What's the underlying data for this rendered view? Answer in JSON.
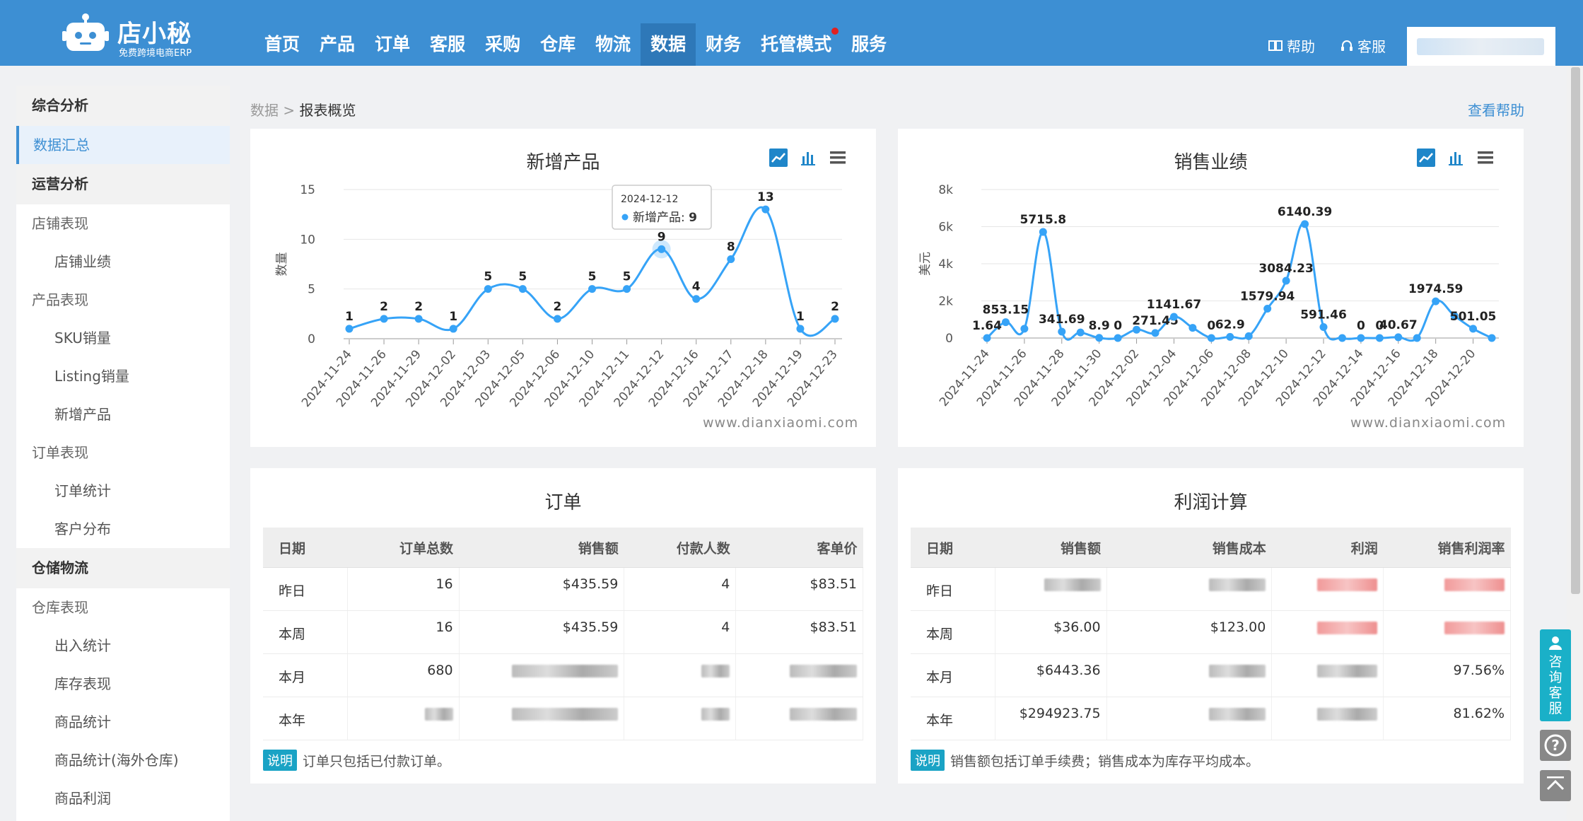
{
  "brand": {
    "name": "店小秘",
    "tagline": "免费跨境电商ERP"
  },
  "nav": [
    {
      "label": "首页"
    },
    {
      "label": "产品"
    },
    {
      "label": "订单"
    },
    {
      "label": "客服"
    },
    {
      "label": "采购"
    },
    {
      "label": "仓库"
    },
    {
      "label": "物流"
    },
    {
      "label": "数据",
      "active": true
    },
    {
      "label": "财务"
    },
    {
      "label": "托管模式",
      "dot": true
    },
    {
      "label": "服务"
    }
  ],
  "header": {
    "help": "帮助",
    "service": "客服"
  },
  "sidebar": [
    {
      "type": "group",
      "label": "综合分析"
    },
    {
      "type": "item",
      "label": "数据汇总",
      "active": true
    },
    {
      "type": "group",
      "label": "运营分析"
    },
    {
      "type": "item",
      "label": "店铺表现"
    },
    {
      "type": "sub",
      "label": "店铺业绩"
    },
    {
      "type": "item",
      "label": "产品表现"
    },
    {
      "type": "sub",
      "label": "SKU销量"
    },
    {
      "type": "sub",
      "label": "Listing销量"
    },
    {
      "type": "sub",
      "label": "新增产品"
    },
    {
      "type": "item",
      "label": "订单表现"
    },
    {
      "type": "sub",
      "label": "订单统计"
    },
    {
      "type": "sub",
      "label": "客户分布"
    },
    {
      "type": "group",
      "label": "仓储物流"
    },
    {
      "type": "item",
      "label": "仓库表现"
    },
    {
      "type": "sub",
      "label": "出入统计"
    },
    {
      "type": "sub",
      "label": "库存表现"
    },
    {
      "type": "sub",
      "label": "商品统计"
    },
    {
      "type": "sub",
      "label": "商品统计(海外仓库)"
    },
    {
      "type": "sub",
      "label": "商品利润"
    }
  ],
  "breadcrumb": {
    "root": "数据",
    "sep": ">",
    "current": "报表概览"
  },
  "help_link": "查看帮助",
  "watermark": "www.dianxiaomi.com",
  "chart_data": [
    {
      "type": "line",
      "title": "新增产品",
      "ylabel": "数量",
      "ylim": [
        0,
        15
      ],
      "yticks": [
        "0",
        "5",
        "10",
        "15"
      ],
      "x": [
        "2024-11-24",
        "2024-11-26",
        "2024-11-29",
        "2024-12-02",
        "2024-12-03",
        "2024-12-05",
        "2024-12-06",
        "2024-12-10",
        "2024-12-11",
        "2024-12-12",
        "2024-12-16",
        "2024-12-17",
        "2024-12-18",
        "2024-12-19",
        "2024-12-23"
      ],
      "series": [
        {
          "name": "新增产品",
          "values": [
            1,
            2,
            2,
            1,
            5,
            5,
            2,
            5,
            5,
            9,
            4,
            8,
            13,
            1,
            2
          ]
        }
      ],
      "labels": [
        "1",
        "2",
        "2",
        "1",
        "5",
        "5",
        "2",
        "5",
        "5",
        "9",
        "4",
        "8",
        "13",
        "1",
        "2"
      ],
      "tooltip": {
        "date": "2024-12-12",
        "label": "新增产品",
        "value": "9"
      }
    },
    {
      "type": "line",
      "title": "销售业绩",
      "ylabel": "美元",
      "ylim": [
        0,
        8000
      ],
      "yticks": [
        "0",
        "2k",
        "4k",
        "6k",
        "8k"
      ],
      "x": [
        "2024-11-24",
        "2024-11-25",
        "2024-11-26",
        "2024-11-27",
        "2024-11-28",
        "2024-11-29",
        "2024-11-30",
        "2024-12-01",
        "2024-12-02",
        "2024-12-03",
        "2024-12-04",
        "2024-12-05",
        "2024-12-06",
        "2024-12-07",
        "2024-12-08",
        "2024-12-09",
        "2024-12-10",
        "2024-12-11",
        "2024-12-12",
        "2024-12-13",
        "2024-12-14",
        "2024-12-15",
        "2024-12-16",
        "2024-12-17",
        "2024-12-18",
        "2024-12-19",
        "2024-12-20",
        "2024-12-21"
      ],
      "xticks": [
        "2024-11-24",
        "2024-11-26",
        "2024-11-28",
        "2024-11-30",
        "2024-12-02",
        "2024-12-04",
        "2024-12-06",
        "2024-12-08",
        "2024-12-10",
        "2024-12-12",
        "2024-12-14",
        "2024-12-16",
        "2024-12-18",
        "2024-12-20"
      ],
      "series": [
        {
          "name": "销售业绩",
          "values": [
            1.64,
            853.15,
            500,
            5715.8,
            341.69,
            300,
            8.9,
            0,
            450,
            271.45,
            1141.67,
            550,
            0,
            62.9,
            100,
            1579.94,
            3084.23,
            6140.39,
            591.46,
            0,
            0,
            0,
            40.67,
            0,
            1974.59,
            1200,
            501.05,
            0
          ]
        }
      ],
      "labels": [
        "1.64",
        "853.15",
        "",
        "5715.8",
        "341.69",
        "",
        "8.9",
        "0",
        "",
        "271.45",
        "1141.67",
        "",
        "0",
        "62.9",
        "",
        "1579.94",
        "3084.23",
        "6140.39",
        "591.46",
        "",
        "0",
        "0",
        "40.67",
        "",
        "1974.59",
        "",
        "501.05",
        ""
      ]
    }
  ],
  "orders": {
    "title": "订单",
    "columns": [
      "日期",
      "订单总数",
      "销售额",
      "付款人数",
      "客单价"
    ],
    "rows": [
      [
        "昨日",
        "16",
        "$435.59",
        "4",
        "$83.51"
      ],
      [
        "本周",
        "16",
        "$435.59",
        "4",
        "$83.51"
      ],
      [
        "本月",
        "680",
        "",
        "",
        ""
      ],
      [
        "本年",
        "",
        "",
        "",
        ""
      ]
    ],
    "note_tag": "说明",
    "note": "订单只包括已付款订单。"
  },
  "profit": {
    "title": "利润计算",
    "columns": [
      "日期",
      "销售额",
      "销售成本",
      "利润",
      "销售利润率"
    ],
    "rows": [
      [
        "昨日",
        "",
        "",
        "",
        ""
      ],
      [
        "本周",
        "$36.00",
        "$123.00",
        "",
        ""
      ],
      [
        "本月",
        "$6443.36",
        "",
        "",
        "97.56%"
      ],
      [
        "本年",
        "$294923.75",
        "",
        "",
        "81.62%"
      ]
    ],
    "note_tag": "说明",
    "note": "销售额包括订单手续费；销售成本为库存平均成本。"
  },
  "float": {
    "service": "咨询客服"
  },
  "colors": {
    "topbar": "#3d8fd3",
    "line": "#36a3f7",
    "accent": "#1aa3c5"
  }
}
